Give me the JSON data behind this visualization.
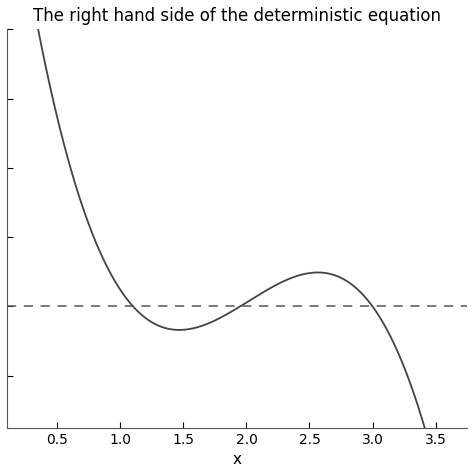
{
  "title": "The right hand side of the deterministic equation",
  "xlabel": "x",
  "x_start": 0.1,
  "x_end": 3.75,
  "xlim": [
    0.1,
    3.75
  ],
  "xticks": [
    0.5,
    1.0,
    1.5,
    2.0,
    2.5,
    3.0,
    3.5
  ],
  "ylim": [
    -3.5,
    8.0
  ],
  "dashed_y": 0.0,
  "line_color": "#444444",
  "dashed_color": "#555555",
  "background_color": "#ffffff",
  "title_fontsize": 12,
  "xlabel_fontsize": 11
}
